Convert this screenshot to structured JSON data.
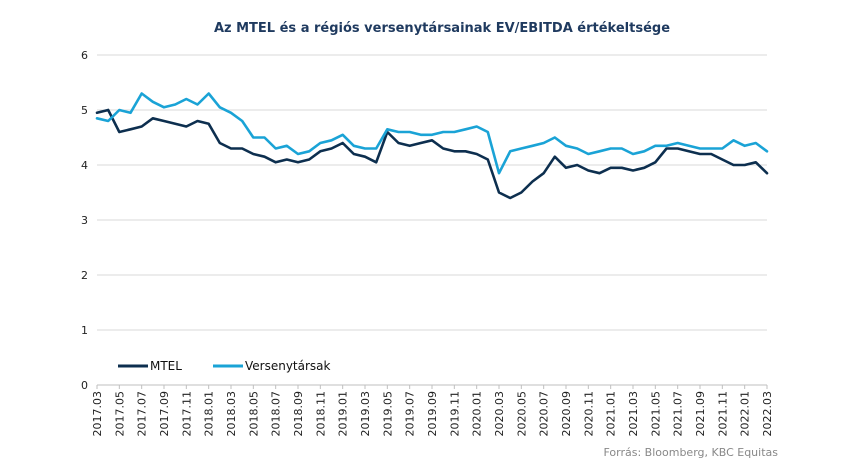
{
  "chart_data": {
    "type": "line",
    "title": "Az MTEL és a régiós versenytársainak EV/EBITDA értékeltsége",
    "xlabel": "",
    "ylabel": "",
    "ylim": [
      0,
      6
    ],
    "yticks": [
      "0",
      "1",
      "2",
      "3",
      "4",
      "5",
      "6"
    ],
    "grid": true,
    "legend_position": "bottom-left",
    "x_tick_labels": [
      "2017.03",
      "2017.05",
      "2017.07",
      "2017.09",
      "2017.11",
      "2018.01",
      "2018.03",
      "2018.05",
      "2018.07",
      "2018.09",
      "2018.11",
      "2019.01",
      "2019.03",
      "2019.05",
      "2019.07",
      "2019.09",
      "2019.11",
      "2020.01",
      "2020.03",
      "2020.05",
      "2020.07",
      "2020.09",
      "2020.11",
      "2021.01",
      "2021.03",
      "2021.05",
      "2021.07",
      "2021.09",
      "2021.11",
      "2022.01",
      "2022.03"
    ],
    "series": [
      {
        "name": "MTEL",
        "color": "#0d2f4f",
        "points": [
          [
            "2017.03",
            4.95
          ],
          [
            "2017.04",
            5.0
          ],
          [
            "2017.05",
            4.6
          ],
          [
            "2017.06",
            4.65
          ],
          [
            "2017.07",
            4.7
          ],
          [
            "2017.08",
            4.85
          ],
          [
            "2017.09",
            4.8
          ],
          [
            "2017.10",
            4.75
          ],
          [
            "2017.11",
            4.7
          ],
          [
            "2017.12",
            4.8
          ],
          [
            "2018.01",
            4.75
          ],
          [
            "2018.02",
            4.4
          ],
          [
            "2018.03",
            4.3
          ],
          [
            "2018.04",
            4.3
          ],
          [
            "2018.05",
            4.2
          ],
          [
            "2018.06",
            4.15
          ],
          [
            "2018.07",
            4.05
          ],
          [
            "2018.08",
            4.1
          ],
          [
            "2018.09",
            4.05
          ],
          [
            "2018.10",
            4.1
          ],
          [
            "2018.11",
            4.25
          ],
          [
            "2018.12",
            4.3
          ],
          [
            "2019.01",
            4.4
          ],
          [
            "2019.02",
            4.2
          ],
          [
            "2019.03",
            4.15
          ],
          [
            "2019.04",
            4.05
          ],
          [
            "2019.05",
            4.6
          ],
          [
            "2019.06",
            4.4
          ],
          [
            "2019.07",
            4.35
          ],
          [
            "2019.08",
            4.4
          ],
          [
            "2019.09",
            4.45
          ],
          [
            "2019.10",
            4.3
          ],
          [
            "2019.11",
            4.25
          ],
          [
            "2019.12",
            4.25
          ],
          [
            "2020.01",
            4.2
          ],
          [
            "2020.02",
            4.1
          ],
          [
            "2020.03",
            3.5
          ],
          [
            "2020.04",
            3.4
          ],
          [
            "2020.05",
            3.5
          ],
          [
            "2020.06",
            3.7
          ],
          [
            "2020.07",
            3.85
          ],
          [
            "2020.08",
            4.15
          ],
          [
            "2020.09",
            3.95
          ],
          [
            "2020.10",
            4.0
          ],
          [
            "2020.11",
            3.9
          ],
          [
            "2020.12",
            3.85
          ],
          [
            "2021.01",
            3.95
          ],
          [
            "2021.02",
            3.95
          ],
          [
            "2021.03",
            3.9
          ],
          [
            "2021.04",
            3.95
          ],
          [
            "2021.05",
            4.05
          ],
          [
            "2021.06",
            4.3
          ],
          [
            "2021.07",
            4.3
          ],
          [
            "2021.08",
            4.25
          ],
          [
            "2021.09",
            4.2
          ],
          [
            "2021.10",
            4.2
          ],
          [
            "2021.11",
            4.1
          ],
          [
            "2021.12",
            4.0
          ],
          [
            "2022.01",
            4.0
          ],
          [
            "2022.02",
            4.05
          ],
          [
            "2022.03",
            3.85
          ]
        ]
      },
      {
        "name": "Versenytársak",
        "color": "#1aa3d6",
        "points": [
          [
            "2017.03",
            4.85
          ],
          [
            "2017.04",
            4.8
          ],
          [
            "2017.05",
            5.0
          ],
          [
            "2017.06",
            4.95
          ],
          [
            "2017.07",
            5.3
          ],
          [
            "2017.08",
            5.15
          ],
          [
            "2017.09",
            5.05
          ],
          [
            "2017.10",
            5.1
          ],
          [
            "2017.11",
            5.2
          ],
          [
            "2017.12",
            5.1
          ],
          [
            "2018.01",
            5.3
          ],
          [
            "2018.02",
            5.05
          ],
          [
            "2018.03",
            4.95
          ],
          [
            "2018.04",
            4.8
          ],
          [
            "2018.05",
            4.5
          ],
          [
            "2018.06",
            4.5
          ],
          [
            "2018.07",
            4.3
          ],
          [
            "2018.08",
            4.35
          ],
          [
            "2018.09",
            4.2
          ],
          [
            "2018.10",
            4.25
          ],
          [
            "2018.11",
            4.4
          ],
          [
            "2018.12",
            4.45
          ],
          [
            "2019.01",
            4.55
          ],
          [
            "2019.02",
            4.35
          ],
          [
            "2019.03",
            4.3
          ],
          [
            "2019.04",
            4.3
          ],
          [
            "2019.05",
            4.65
          ],
          [
            "2019.06",
            4.6
          ],
          [
            "2019.07",
            4.6
          ],
          [
            "2019.08",
            4.55
          ],
          [
            "2019.09",
            4.55
          ],
          [
            "2019.10",
            4.6
          ],
          [
            "2019.11",
            4.6
          ],
          [
            "2019.12",
            4.65
          ],
          [
            "2020.01",
            4.7
          ],
          [
            "2020.02",
            4.6
          ],
          [
            "2020.03",
            3.85
          ],
          [
            "2020.04",
            4.25
          ],
          [
            "2020.05",
            4.3
          ],
          [
            "2020.06",
            4.35
          ],
          [
            "2020.07",
            4.4
          ],
          [
            "2020.08",
            4.5
          ],
          [
            "2020.09",
            4.35
          ],
          [
            "2020.10",
            4.3
          ],
          [
            "2020.11",
            4.2
          ],
          [
            "2020.12",
            4.25
          ],
          [
            "2021.01",
            4.3
          ],
          [
            "2021.02",
            4.3
          ],
          [
            "2021.03",
            4.2
          ],
          [
            "2021.04",
            4.25
          ],
          [
            "2021.05",
            4.35
          ],
          [
            "2021.06",
            4.35
          ],
          [
            "2021.07",
            4.4
          ],
          [
            "2021.08",
            4.35
          ],
          [
            "2021.09",
            4.3
          ],
          [
            "2021.10",
            4.3
          ],
          [
            "2021.11",
            4.3
          ],
          [
            "2021.12",
            4.45
          ],
          [
            "2022.01",
            4.35
          ],
          [
            "2022.02",
            4.4
          ],
          [
            "2022.03",
            4.25
          ]
        ]
      }
    ]
  },
  "source_note": "Forrás: Bloomberg,  KBC Equitas"
}
